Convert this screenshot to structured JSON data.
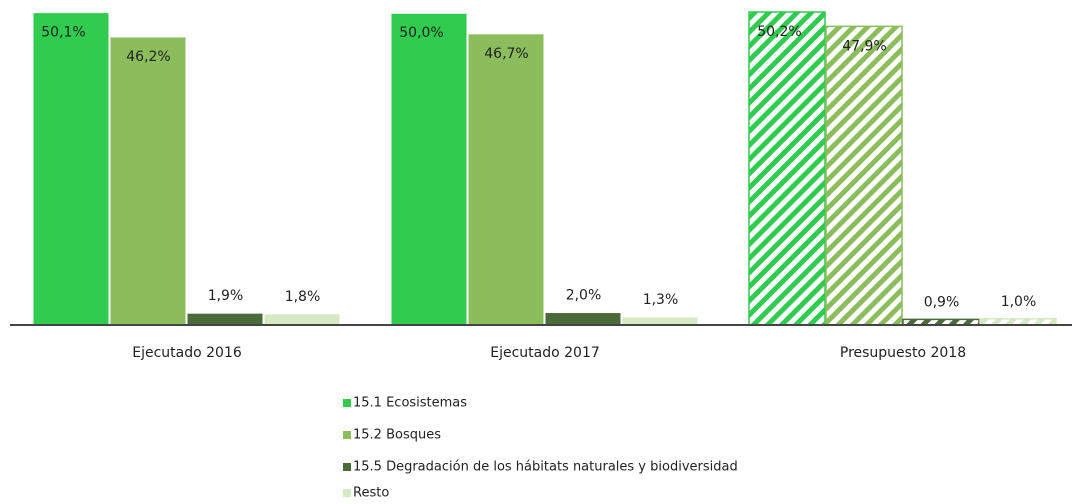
{
  "chart_data": {
    "type": "bar",
    "categories": [
      "Ejecutado 2016",
      "Ejecutado 2017",
      "Presupuesto 2018"
    ],
    "hatched": [
      false,
      false,
      true
    ],
    "series": [
      {
        "name": "15.1  Ecosistemas",
        "color": "#2fcc4f",
        "values": [
          50.1,
          50.0,
          50.2
        ],
        "value_labels": [
          "50,1%",
          "50,0%",
          "50,2%"
        ]
      },
      {
        "name": "15.2  Bosques",
        "color": "#8bbd5c",
        "values": [
          46.2,
          46.7,
          47.9
        ],
        "value_labels": [
          "46,2%",
          "46,7%",
          "47,9%"
        ]
      },
      {
        "name": "15.5 Degradación de los hábitats naturales y biodiversidad",
        "color": "#4b6a3a",
        "values": [
          1.9,
          2.0,
          0.9
        ],
        "value_labels": [
          "1,9%",
          "2,0%",
          "0,9%"
        ]
      },
      {
        "name": "Resto",
        "color": "#d5eac3",
        "values": [
          1.8,
          1.3,
          1.0
        ],
        "value_labels": [
          "1,8%",
          "1,3%",
          "1,0%"
        ]
      }
    ]
  }
}
